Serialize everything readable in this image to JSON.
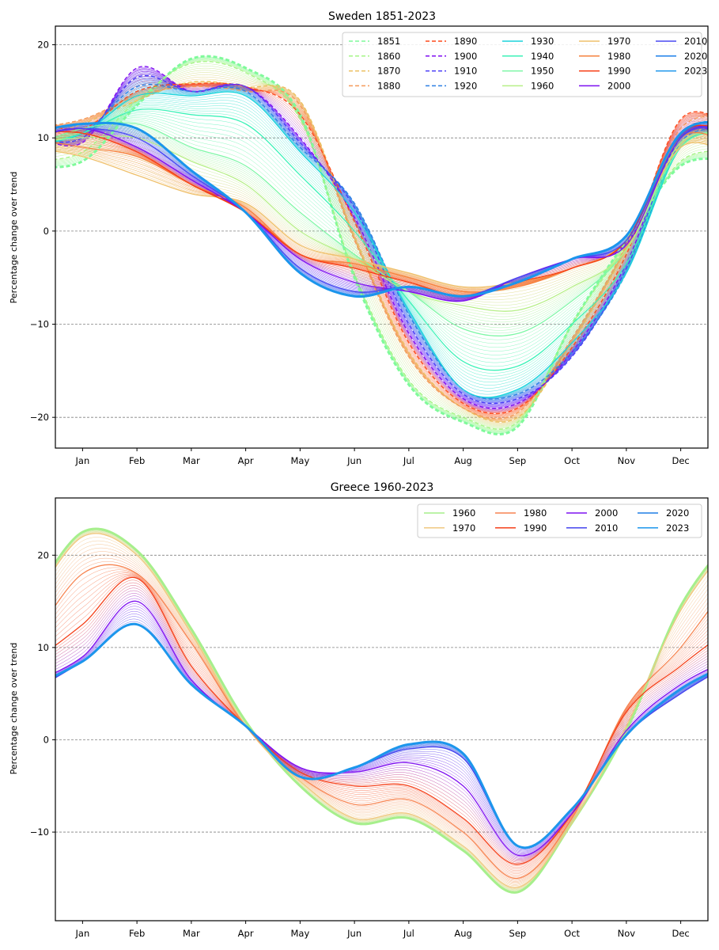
{
  "chart_data": [
    {
      "type": "line",
      "title": "Sweden 1851-2023",
      "xlabel": "",
      "ylabel": "Percentage change over trend",
      "months": [
        "Jan",
        "Feb",
        "Mar",
        "Apr",
        "May",
        "Jun",
        "Jul",
        "Aug",
        "Sep",
        "Oct",
        "Nov",
        "Dec"
      ],
      "xlim": [
        0.5,
        12.5
      ],
      "ylim": [
        -23.3,
        22
      ],
      "yticks": [
        -20,
        -10,
        0,
        10,
        20
      ],
      "ytick_labels": [
        "−20",
        "−10",
        "0",
        "10",
        "20"
      ],
      "grid": "horizontal dashed",
      "legend_position": "top-right",
      "legend_columns": 5,
      "legend_order": [
        "1851",
        "1860",
        "1870",
        "1880",
        "1890",
        "1900",
        "1910",
        "1920",
        "1930",
        "1940",
        "1950",
        "1960",
        "1970",
        "1980",
        "1990",
        "2000",
        "2010",
        "2020",
        "2023"
      ],
      "series": [
        {
          "name": "1851",
          "color": "#7ffa9a",
          "style": "dashed",
          "values": [
            7.5,
            13.5,
            18.5,
            17.5,
            12.5,
            -5.0,
            -16.5,
            -20.5,
            -21.0,
            -10.0,
            -1.0,
            7.0
          ]
        },
        {
          "name": "1860",
          "color": "#a6f586",
          "style": "dashed",
          "values": [
            8.5,
            14.0,
            18.0,
            17.0,
            12.0,
            -4.5,
            -16.0,
            -20.0,
            -20.5,
            -10.0,
            -1.5,
            7.5
          ]
        },
        {
          "name": "1870",
          "color": "#ebbf5e",
          "style": "dashed",
          "values": [
            11.5,
            14.0,
            16.0,
            15.5,
            14.0,
            -0.5,
            -13.0,
            -19.0,
            -20.0,
            -12.0,
            -2.0,
            9.5
          ]
        },
        {
          "name": "1880",
          "color": "#f59a5a",
          "style": "dashed",
          "values": [
            12.0,
            14.5,
            15.5,
            15.0,
            13.5,
            -1.0,
            -13.5,
            -19.0,
            -19.5,
            -11.5,
            -1.5,
            11.0
          ]
        },
        {
          "name": "1890",
          "color": "#fe4a1c",
          "style": "dashed",
          "values": [
            11.0,
            15.0,
            15.8,
            15.5,
            12.5,
            1.0,
            -12.0,
            -18.5,
            -19.0,
            -12.5,
            -2.5,
            12.0
          ]
        },
        {
          "name": "1900",
          "color": "#7f0df2",
          "style": "dashed",
          "values": [
            9.5,
            17.5,
            15.0,
            15.5,
            10.0,
            1.5,
            -11.0,
            -18.0,
            -18.5,
            -13.0,
            -3.5,
            10.5
          ]
        },
        {
          "name": "1910",
          "color": "#4a3cf7",
          "style": "dashed",
          "values": [
            10.0,
            16.5,
            15.0,
            15.5,
            9.5,
            2.5,
            -10.0,
            -17.5,
            -18.0,
            -13.5,
            -4.0,
            10.0
          ]
        },
        {
          "name": "1920",
          "color": "#2c7fe4",
          "style": "dashed",
          "values": [
            10.5,
            15.5,
            15.0,
            15.0,
            9.0,
            3.0,
            -9.0,
            -17.0,
            -17.5,
            -13.0,
            -4.5,
            9.5
          ]
        },
        {
          "name": "1930",
          "color": "#1bd4dc",
          "style": "solid",
          "values": [
            10.5,
            14.5,
            14.5,
            14.5,
            8.5,
            2.0,
            -8.5,
            -17.0,
            -17.0,
            -12.0,
            -4.5,
            9.0
          ]
        },
        {
          "name": "1940",
          "color": "#3cf2b8",
          "style": "solid",
          "values": [
            10.5,
            13.0,
            12.5,
            11.5,
            6.0,
            0.0,
            -7.5,
            -14.0,
            -14.5,
            -10.0,
            -3.5,
            9.0
          ]
        },
        {
          "name": "1950",
          "color": "#7ef7a6",
          "style": "solid",
          "values": [
            11.0,
            11.5,
            9.0,
            7.0,
            2.0,
            -2.5,
            -6.5,
            -10.5,
            -11.0,
            -7.5,
            -2.0,
            9.0
          ]
        },
        {
          "name": "1960",
          "color": "#b6ef87",
          "style": "solid",
          "values": [
            10.0,
            10.0,
            7.5,
            5.0,
            0.0,
            -3.0,
            -6.5,
            -8.0,
            -8.5,
            -6.0,
            -2.0,
            9.5
          ]
        },
        {
          "name": "1970",
          "color": "#efc06b",
          "style": "solid",
          "values": [
            8.0,
            6.0,
            4.0,
            3.0,
            -1.5,
            -3.0,
            -4.5,
            -6.0,
            -5.5,
            -4.0,
            -1.0,
            9.0
          ]
        },
        {
          "name": "1980",
          "color": "#f6823e",
          "style": "solid",
          "values": [
            9.0,
            8.0,
            5.0,
            2.5,
            -2.5,
            -3.5,
            -5.0,
            -6.5,
            -6.0,
            -4.0,
            -1.0,
            10.0
          ]
        },
        {
          "name": "1990",
          "color": "#f73a10",
          "style": "solid",
          "values": [
            10.5,
            8.5,
            5.0,
            2.0,
            -2.5,
            -4.0,
            -5.5,
            -7.0,
            -5.5,
            -4.0,
            -1.0,
            10.5
          ]
        },
        {
          "name": "2000",
          "color": "#7b0ff0",
          "style": "solid",
          "values": [
            11.0,
            9.0,
            5.5,
            2.0,
            -3.0,
            -5.5,
            -6.5,
            -7.5,
            -5.0,
            -3.0,
            -1.5,
            10.0
          ]
        },
        {
          "name": "2010",
          "color": "#4848f2",
          "style": "solid",
          "values": [
            11.0,
            10.0,
            6.0,
            2.0,
            -4.0,
            -6.5,
            -6.0,
            -7.0,
            -5.0,
            -3.0,
            -1.0,
            10.0
          ]
        },
        {
          "name": "2020",
          "color": "#1c7fea",
          "style": "solid",
          "values": [
            11.5,
            11.0,
            6.5,
            2.0,
            -4.5,
            -7.0,
            -6.0,
            -7.0,
            -5.5,
            -3.0,
            -0.5,
            10.5
          ]
        },
        {
          "name": "2023",
          "color": "#1b95ec",
          "style": "solid",
          "values": [
            11.5,
            11.0,
            6.5,
            2.0,
            -4.5,
            -7.0,
            -6.0,
            -7.0,
            -5.5,
            -3.0,
            -0.5,
            10.5
          ]
        }
      ]
    },
    {
      "type": "line",
      "title": "Greece 1960-2023",
      "xlabel": "",
      "ylabel": "Percentage change over trend",
      "months": [
        "Jan",
        "Feb",
        "Mar",
        "Apr",
        "May",
        "Jun",
        "Jul",
        "Aug",
        "Sep",
        "Oct",
        "Nov",
        "Dec"
      ],
      "xlim": [
        0.5,
        12.5
      ],
      "ylim": [
        -19.6,
        26.2
      ],
      "yticks": [
        -10,
        0,
        10,
        20
      ],
      "ytick_labels": [
        "−10",
        "0",
        "10",
        "20"
      ],
      "grid": "horizontal dashed",
      "legend_position": "top-right",
      "legend_columns": 4,
      "legend_order": [
        "1960",
        "1970",
        "1980",
        "1990",
        "2000",
        "2010",
        "2020",
        "2023"
      ],
      "series": [
        {
          "name": "1960",
          "color": "#a6ef8c",
          "style": "solid",
          "values": [
            22.5,
            20.5,
            12.0,
            2.0,
            -5.0,
            -9.0,
            -8.5,
            -12.0,
            -16.5,
            -9.0,
            1.0,
            14.5
          ]
        },
        {
          "name": "1970",
          "color": "#f0c880",
          "style": "solid",
          "values": [
            22.0,
            20.0,
            11.5,
            1.5,
            -4.5,
            -8.5,
            -8.0,
            -11.5,
            -16.0,
            -9.0,
            1.5,
            14.0
          ]
        },
        {
          "name": "1980",
          "color": "#f78450",
          "style": "solid",
          "values": [
            18.0,
            18.0,
            10.5,
            1.5,
            -4.0,
            -7.0,
            -6.5,
            -10.0,
            -15.0,
            -8.5,
            3.5,
            10.0
          ]
        },
        {
          "name": "1990",
          "color": "#f5401a",
          "style": "solid",
          "values": [
            12.5,
            17.5,
            8.0,
            1.5,
            -3.5,
            -5.0,
            -5.0,
            -8.5,
            -13.5,
            -8.0,
            3.0,
            8.0
          ]
        },
        {
          "name": "2000",
          "color": "#7f10f0",
          "style": "solid",
          "values": [
            9.0,
            15.0,
            6.5,
            1.5,
            -3.0,
            -3.5,
            -2.5,
            -5.0,
            -12.5,
            -8.0,
            1.0,
            6.0
          ]
        },
        {
          "name": "2010",
          "color": "#4545ee",
          "style": "solid",
          "values": [
            8.5,
            12.5,
            6.0,
            1.5,
            -4.0,
            -3.0,
            -1.0,
            -2.0,
            -11.5,
            -7.5,
            0.5,
            5.0
          ]
        },
        {
          "name": "2020",
          "color": "#1e7fe6",
          "style": "solid",
          "values": [
            8.5,
            12.5,
            6.0,
            1.5,
            -4.0,
            -3.0,
            -0.5,
            -1.5,
            -11.5,
            -7.5,
            0.5,
            5.5
          ]
        },
        {
          "name": "2023",
          "color": "#1c96ec",
          "style": "solid",
          "values": [
            8.5,
            12.5,
            6.0,
            1.5,
            -4.0,
            -3.0,
            -0.5,
            -1.5,
            -11.5,
            -7.5,
            0.5,
            5.5
          ]
        }
      ]
    }
  ]
}
